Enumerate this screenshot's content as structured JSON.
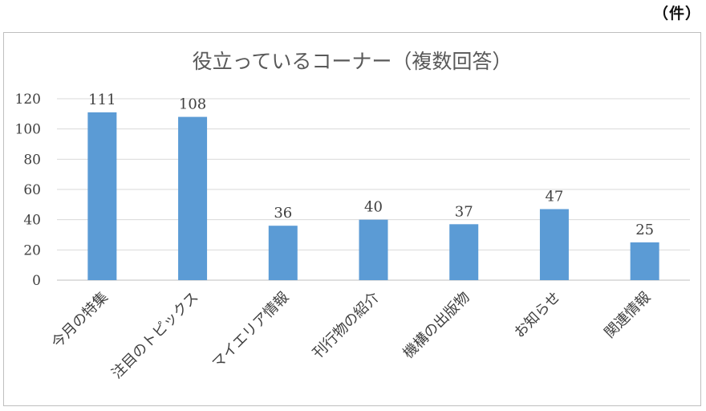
{
  "unit_label": "（件）",
  "chart_data": {
    "type": "bar",
    "title": "役立っているコーナー（複数回答）",
    "categories": [
      "今月の特集",
      "注目のトピックス",
      "マイエリア情報",
      "刊行物の紹介",
      "機構の出版物",
      "お知らせ",
      "関連情報"
    ],
    "values": [
      111,
      108,
      36,
      40,
      37,
      47,
      25
    ],
    "ylim": [
      0,
      120
    ],
    "yticks": [
      0,
      20,
      40,
      60,
      80,
      100,
      120
    ],
    "grid": true,
    "legend": "none",
    "bar_color": "#5b9bd5",
    "xlabel": "",
    "ylabel": ""
  }
}
